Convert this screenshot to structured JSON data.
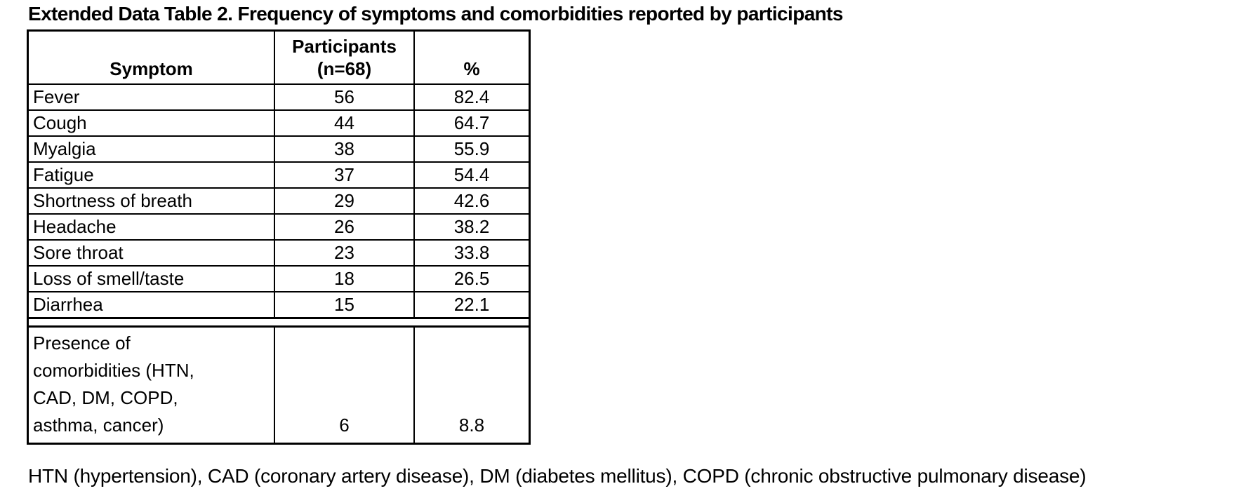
{
  "title": "Extended Data Table 2. Frequency of symptoms and comorbidities reported by participants",
  "table": {
    "header": {
      "symptom": "Symptom",
      "participants": "Participants\n(n=68)",
      "percent": "%"
    },
    "rows": [
      {
        "symptom": "Fever",
        "participants": "56",
        "percent": "82.4"
      },
      {
        "symptom": "Cough",
        "participants": "44",
        "percent": "64.7"
      },
      {
        "symptom": "Myalgia",
        "participants": "38",
        "percent": "55.9"
      },
      {
        "symptom": "Fatigue",
        "participants": "37",
        "percent": "54.4"
      },
      {
        "symptom": "Shortness of breath",
        "participants": "29",
        "percent": "42.6"
      },
      {
        "symptom": "Headache",
        "participants": "26",
        "percent": "38.2"
      },
      {
        "symptom": "Sore throat",
        "participants": "23",
        "percent": "33.8"
      },
      {
        "symptom": "Loss of smell/taste",
        "participants": "18",
        "percent": "26.5"
      },
      {
        "symptom": "Diarrhea",
        "participants": "15",
        "percent": "22.1"
      }
    ],
    "comorbidities_row": {
      "label": "Presence of\ncomorbidities (HTN,\nCAD, DM, COPD,\nasthma, cancer)",
      "participants": "6",
      "percent": "8.8"
    }
  },
  "footnote": "HTN (hypertension), CAD (coronary artery disease), DM (diabetes mellitus), COPD (chronic obstructive pulmonary disease)"
}
